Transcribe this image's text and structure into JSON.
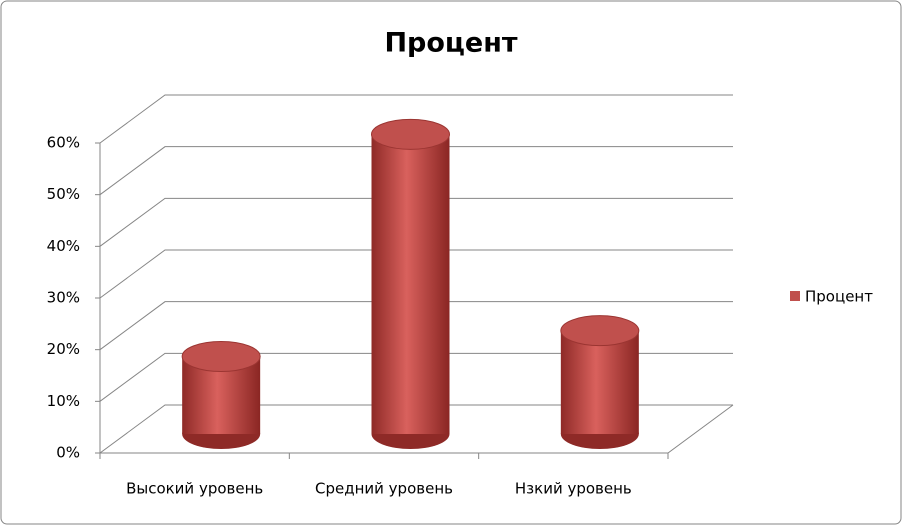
{
  "chart_data": {
    "type": "bar3d",
    "title": "Процент",
    "categories": [
      "Высокий уровень",
      "Средний уровень",
      "Нзкий уровень"
    ],
    "series": [
      {
        "name": "Процент",
        "color": "#c0504d",
        "values": [
          15,
          58,
          20
        ]
      }
    ],
    "ylim": [
      0,
      60
    ],
    "yticks": [
      {
        "value": 0,
        "label": "0%"
      },
      {
        "value": 10,
        "label": "10%"
      },
      {
        "value": 20,
        "label": "20%"
      },
      {
        "value": 30,
        "label": "30%"
      },
      {
        "value": 40,
        "label": "40%"
      },
      {
        "value": 50,
        "label": "50%"
      },
      {
        "value": 60,
        "label": "60%"
      }
    ],
    "grid": true,
    "legend": "right"
  }
}
